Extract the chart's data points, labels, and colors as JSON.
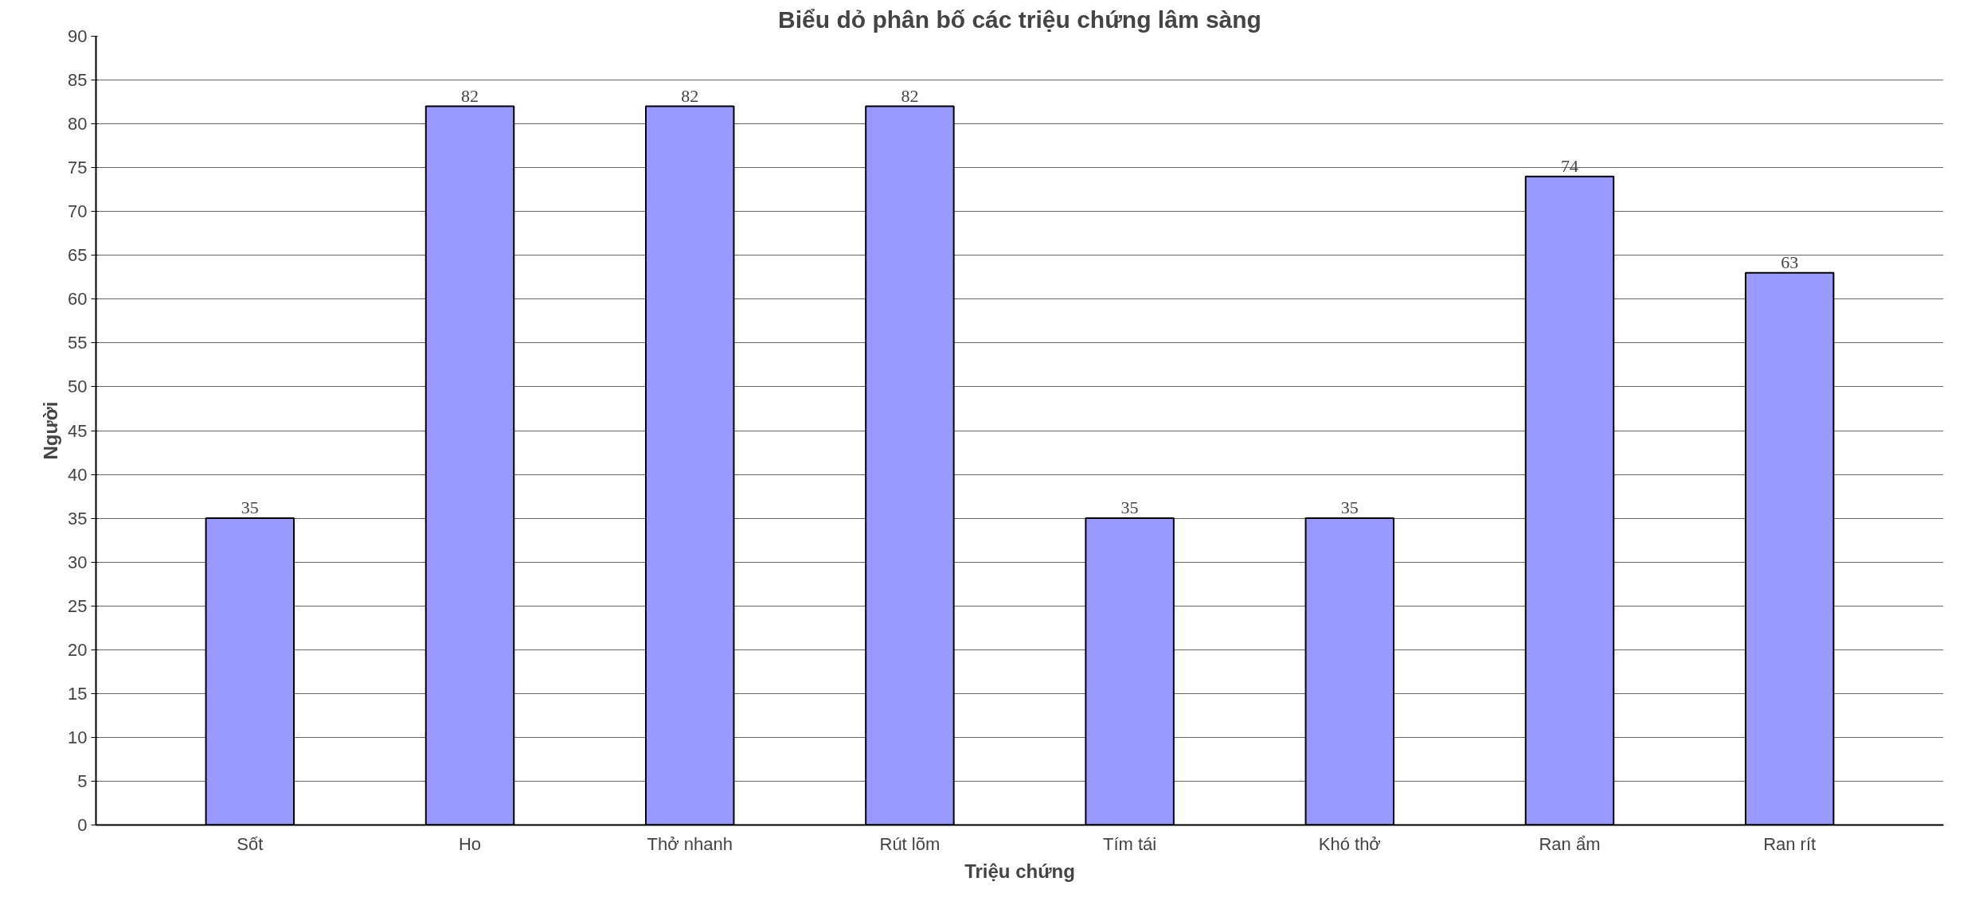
{
  "chart_data": {
    "type": "bar",
    "title": "Biểu dỏ phân bố các triệu chứng lâm sàng",
    "xlabel": "Triệu chứng",
    "ylabel": "Người",
    "categories": [
      "Sốt",
      "Ho",
      "Thở nhanh",
      "Rút lõm",
      "Tím tái",
      "Khó thở",
      "Ran ẩm",
      "Ran rít"
    ],
    "values": [
      35,
      82,
      82,
      82,
      35,
      35,
      74,
      63
    ],
    "color": "#9999ff",
    "ylim": [
      0,
      90
    ],
    "yticks": [
      0,
      5,
      10,
      15,
      20,
      25,
      30,
      35,
      40,
      45,
      50,
      55,
      60,
      65,
      70,
      75,
      80,
      85,
      90
    ],
    "grid": "y",
    "data_labels": true
  }
}
